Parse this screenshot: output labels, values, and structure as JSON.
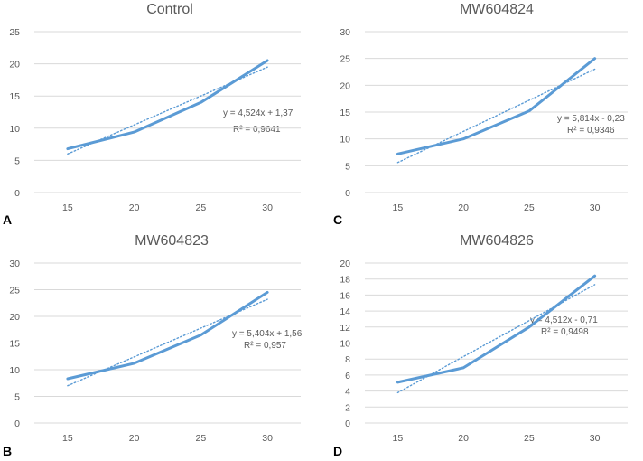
{
  "colors": {
    "series": "#5B9BD5",
    "gridline": "#D9D9D9",
    "text": "#595959"
  },
  "chart_data": [
    {
      "type": "line",
      "panel_letter": "A",
      "title": "Control",
      "categories": [
        "15",
        "20",
        "25",
        "30"
      ],
      "x": [
        15,
        20,
        25,
        30
      ],
      "series": [
        {
          "name": "data",
          "values": [
            6.8,
            9.4,
            14.0,
            20.5
          ]
        },
        {
          "name": "linear trendline",
          "style": "dotted",
          "values": [
            6.0,
            10.5,
            15.0,
            19.5
          ]
        }
      ],
      "ylim": [
        0,
        25
      ],
      "yticks": [
        "0",
        "5",
        "10",
        "15",
        "20",
        "25"
      ],
      "equation": "y = 4,524x + 1,37",
      "r2": "R² = 0,9641",
      "grid": true
    },
    {
      "type": "line",
      "panel_letter": "C",
      "title": "MW604824",
      "categories": [
        "15",
        "20",
        "25",
        "30"
      ],
      "x": [
        15,
        20,
        25,
        30
      ],
      "series": [
        {
          "name": "data",
          "values": [
            7.2,
            10.0,
            15.2,
            25.0
          ]
        },
        {
          "name": "linear trendline",
          "style": "dotted",
          "values": [
            5.6,
            11.4,
            17.2,
            23.0
          ]
        }
      ],
      "ylim": [
        0,
        30
      ],
      "yticks": [
        "0",
        "5",
        "10",
        "15",
        "20",
        "25",
        "30"
      ],
      "equation": "y = 5,814x - 0,23",
      "r2": "R² = 0,9346",
      "grid": true
    },
    {
      "type": "line",
      "panel_letter": "B",
      "title": "MW604823",
      "categories": [
        "15",
        "20",
        "25",
        "30"
      ],
      "x": [
        15,
        20,
        25,
        30
      ],
      "series": [
        {
          "name": "data",
          "values": [
            8.3,
            11.2,
            16.5,
            24.5
          ]
        },
        {
          "name": "linear trendline",
          "style": "dotted",
          "values": [
            7.0,
            12.4,
            17.8,
            23.2
          ]
        }
      ],
      "ylim": [
        0,
        30
      ],
      "yticks": [
        "0",
        "5",
        "10",
        "15",
        "20",
        "25",
        "30"
      ],
      "equation": "y = 5,404x + 1,56",
      "r2": "R² = 0,957",
      "grid": true
    },
    {
      "type": "line",
      "panel_letter": "D",
      "title": "MW604826",
      "categories": [
        "15",
        "20",
        "25",
        "30"
      ],
      "x": [
        15,
        20,
        25,
        30
      ],
      "series": [
        {
          "name": "data",
          "values": [
            5.1,
            6.9,
            12.0,
            18.4
          ]
        },
        {
          "name": "linear trendline",
          "style": "dotted",
          "values": [
            3.8,
            8.3,
            12.8,
            17.3
          ]
        }
      ],
      "ylim": [
        0,
        20
      ],
      "yticks": [
        "0",
        "2",
        "4",
        "6",
        "8",
        "10",
        "12",
        "14",
        "16",
        "18",
        "20"
      ],
      "equation": "y = 4,512x - 0,71",
      "r2": "R² = 0,9498",
      "grid": true
    }
  ]
}
